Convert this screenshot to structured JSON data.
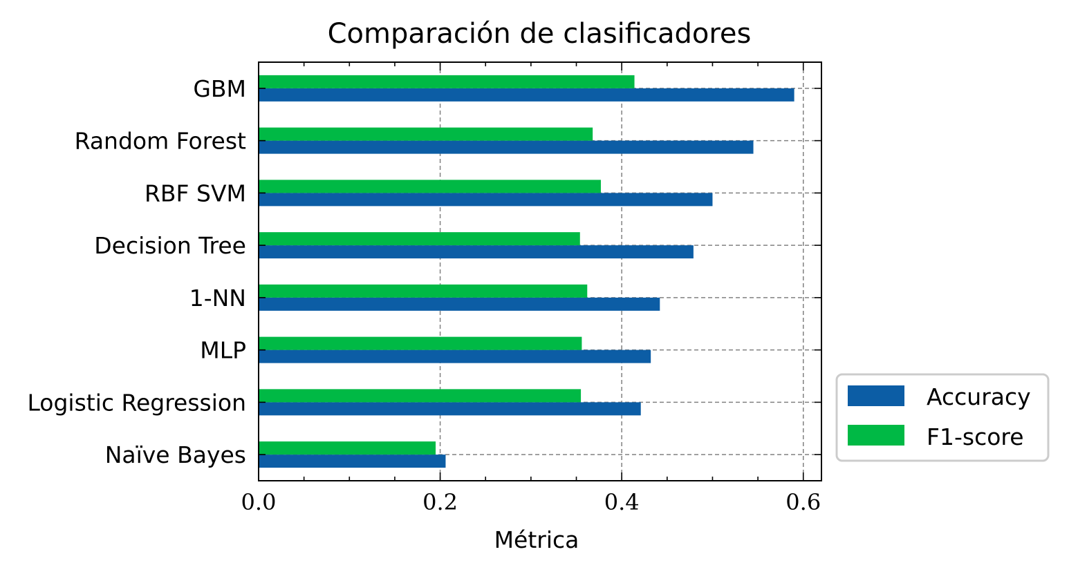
{
  "chart_data": {
    "type": "bar",
    "orientation": "horizontal",
    "title": "Comparación de clasificadores",
    "xlabel": "Métrica",
    "ylabel": "",
    "xlim": [
      0.0,
      0.62
    ],
    "x_ticks": [
      "0.0",
      "0.2",
      "0.4",
      "0.6"
    ],
    "categories": [
      "GBM",
      "Random Forest",
      "RBF SVM",
      "Decision Tree",
      "1-NN",
      "MLP",
      "Logistic Regression",
      "Naïve Bayes"
    ],
    "series": [
      {
        "name": "Accuracy",
        "color": "#0c5da5",
        "values": [
          0.59,
          0.545,
          0.5,
          0.479,
          0.442,
          0.432,
          0.421,
          0.206
        ]
      },
      {
        "name": "F1-score",
        "color": "#00b945",
        "values": [
          0.414,
          0.368,
          0.377,
          0.354,
          0.362,
          0.356,
          0.355,
          0.195
        ]
      }
    ],
    "grid": true,
    "legend_position": "outside-right-bottom"
  }
}
